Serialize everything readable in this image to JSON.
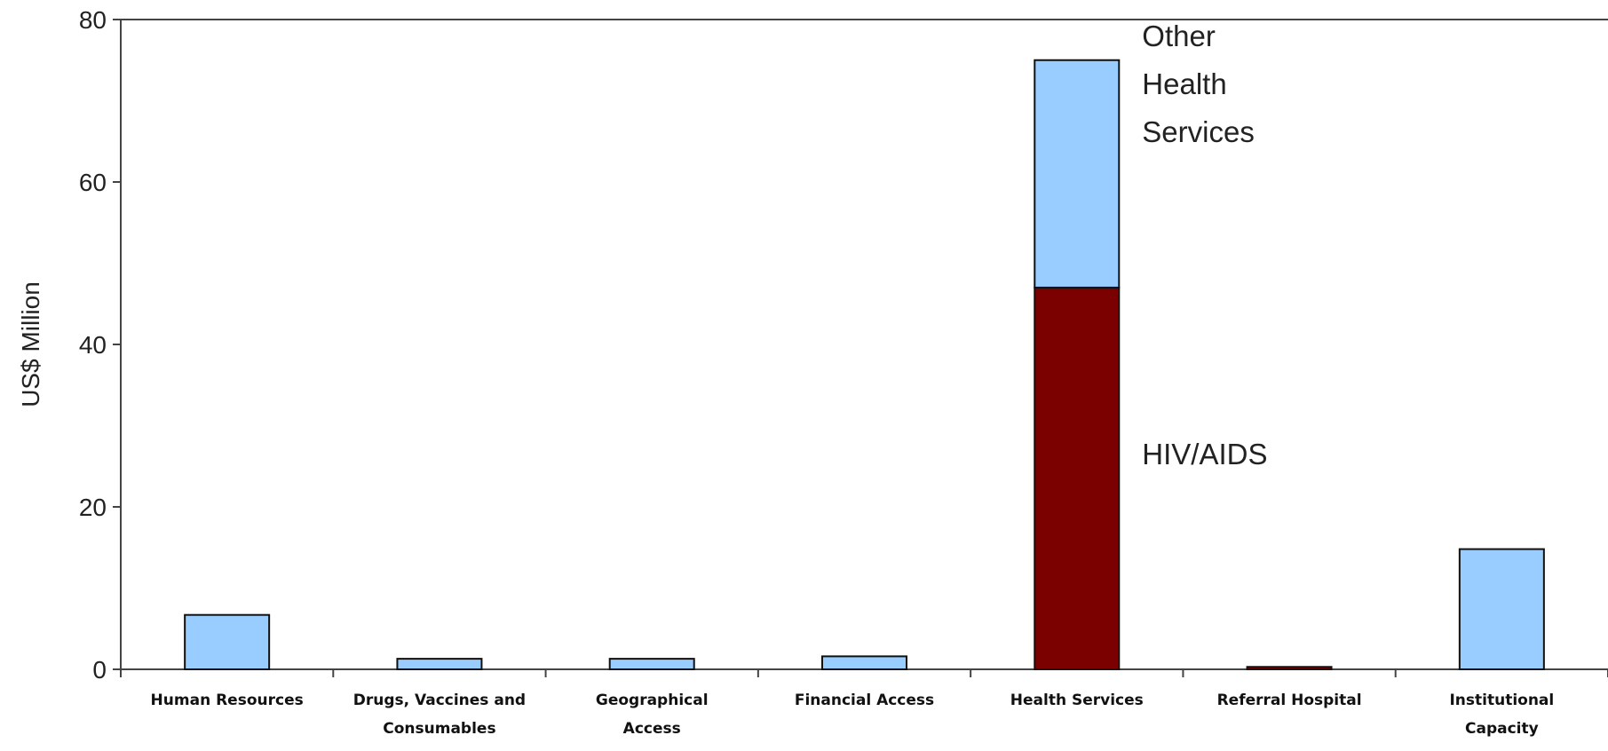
{
  "chart_data": {
    "type": "bar",
    "stacked": true,
    "categories": [
      [
        "Human Resources"
      ],
      [
        "Drugs, Vaccines and",
        "Consumables"
      ],
      [
        "Geographical",
        "Access"
      ],
      [
        "Financial Access"
      ],
      [
        "Health Services"
      ],
      [
        "Referral Hospital"
      ],
      [
        "Institutional",
        "Capacity"
      ]
    ],
    "series": [
      {
        "key": "hiv",
        "color": "#7b0000",
        "values": [
          0,
          0,
          0,
          0,
          47,
          0.3,
          0
        ]
      },
      {
        "key": "other",
        "color": "#99ccff",
        "values": [
          6.7,
          1.3,
          1.3,
          1.6,
          28,
          0,
          14.8
        ]
      }
    ],
    "annotations": [
      {
        "series": "other",
        "lines": [
          "Other",
          "Health",
          "Services"
        ]
      },
      {
        "series": "hiv",
        "lines": [
          "HIV/AIDS"
        ]
      }
    ],
    "ylabel": "US$ Million",
    "xlabel": "",
    "title": "",
    "ylim": [
      0,
      80
    ],
    "yticks": [
      0,
      20,
      40,
      60,
      80
    ],
    "grid": false,
    "legend": "none"
  }
}
